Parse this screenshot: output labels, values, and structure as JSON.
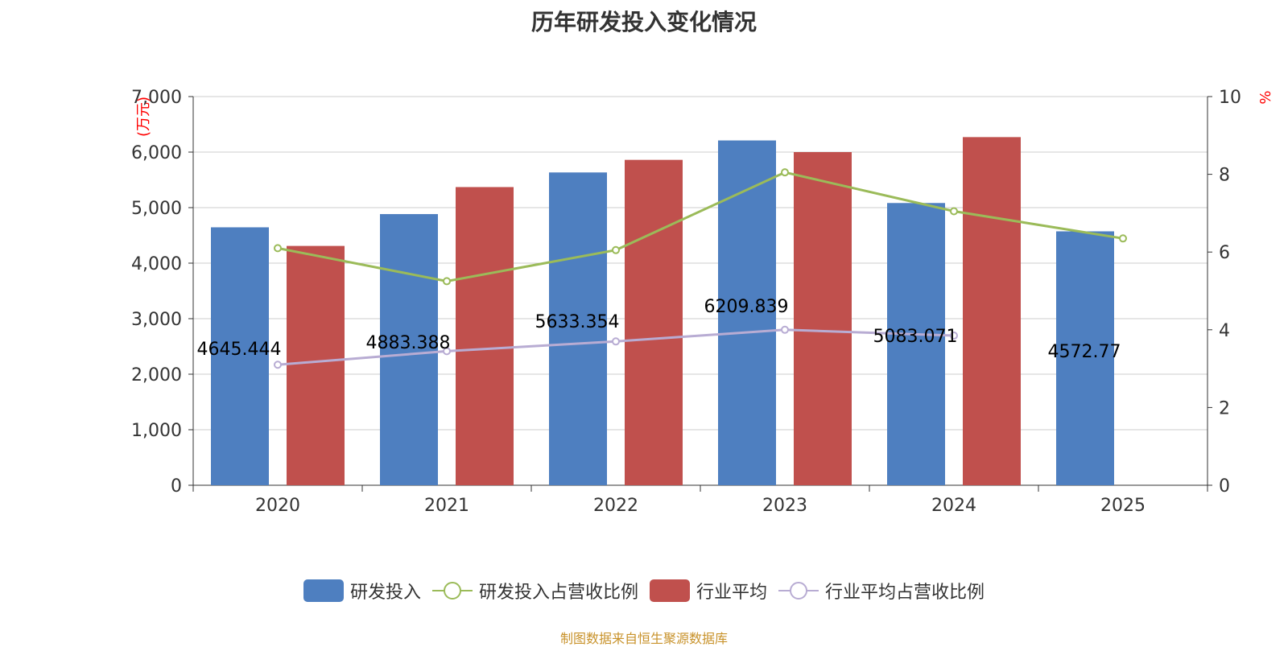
{
  "title": "历年研发投入变化情况",
  "source": "制图数据来自恒生聚源数据库",
  "colors": {
    "rd_bar": "#4e7fc0",
    "industry_bar": "#c0504d",
    "rd_ratio_line": "#9bbb59",
    "industry_ratio_line": "#b8acd3",
    "axis_text": "#333333",
    "unit_text": "#ff0000",
    "grid": "#cccccc"
  },
  "chart_data": {
    "type": "bar",
    "categories": [
      "2020",
      "2021",
      "2022",
      "2023",
      "2024",
      "2025"
    ],
    "y_left": {
      "unit_label": "(万元)",
      "range": [
        0,
        7000
      ],
      "ticks": [
        "0",
        "1,000",
        "2,000",
        "3,000",
        "4,000",
        "5,000",
        "6,000",
        "7,000"
      ]
    },
    "y_right": {
      "unit_label": "%",
      "range": [
        0,
        10
      ],
      "ticks": [
        "0",
        "2",
        "4",
        "6",
        "8",
        "10"
      ]
    },
    "grid": true,
    "legend_position": "bottom",
    "series": [
      {
        "name": "研发投入",
        "type": "bar",
        "axis": "left",
        "values": [
          4645.444,
          4883.388,
          5633.354,
          6209.839,
          5083.071,
          4572.77
        ],
        "data_labels": [
          "4645.444",
          "4883.388",
          "5633.354",
          "6209.839",
          "5083.071",
          "4572.77"
        ]
      },
      {
        "name": "研发投入占营收比例",
        "type": "line",
        "axis": "right",
        "values": [
          6.1,
          5.25,
          6.05,
          8.05,
          7.05,
          6.35
        ]
      },
      {
        "name": "行业平均",
        "type": "bar",
        "axis": "left",
        "values": [
          4310,
          5370,
          5860,
          6000,
          6270,
          null
        ]
      },
      {
        "name": "行业平均占营收比例",
        "type": "line",
        "axis": "right",
        "values": [
          3.1,
          3.45,
          3.7,
          4.0,
          3.85,
          null
        ]
      }
    ]
  }
}
